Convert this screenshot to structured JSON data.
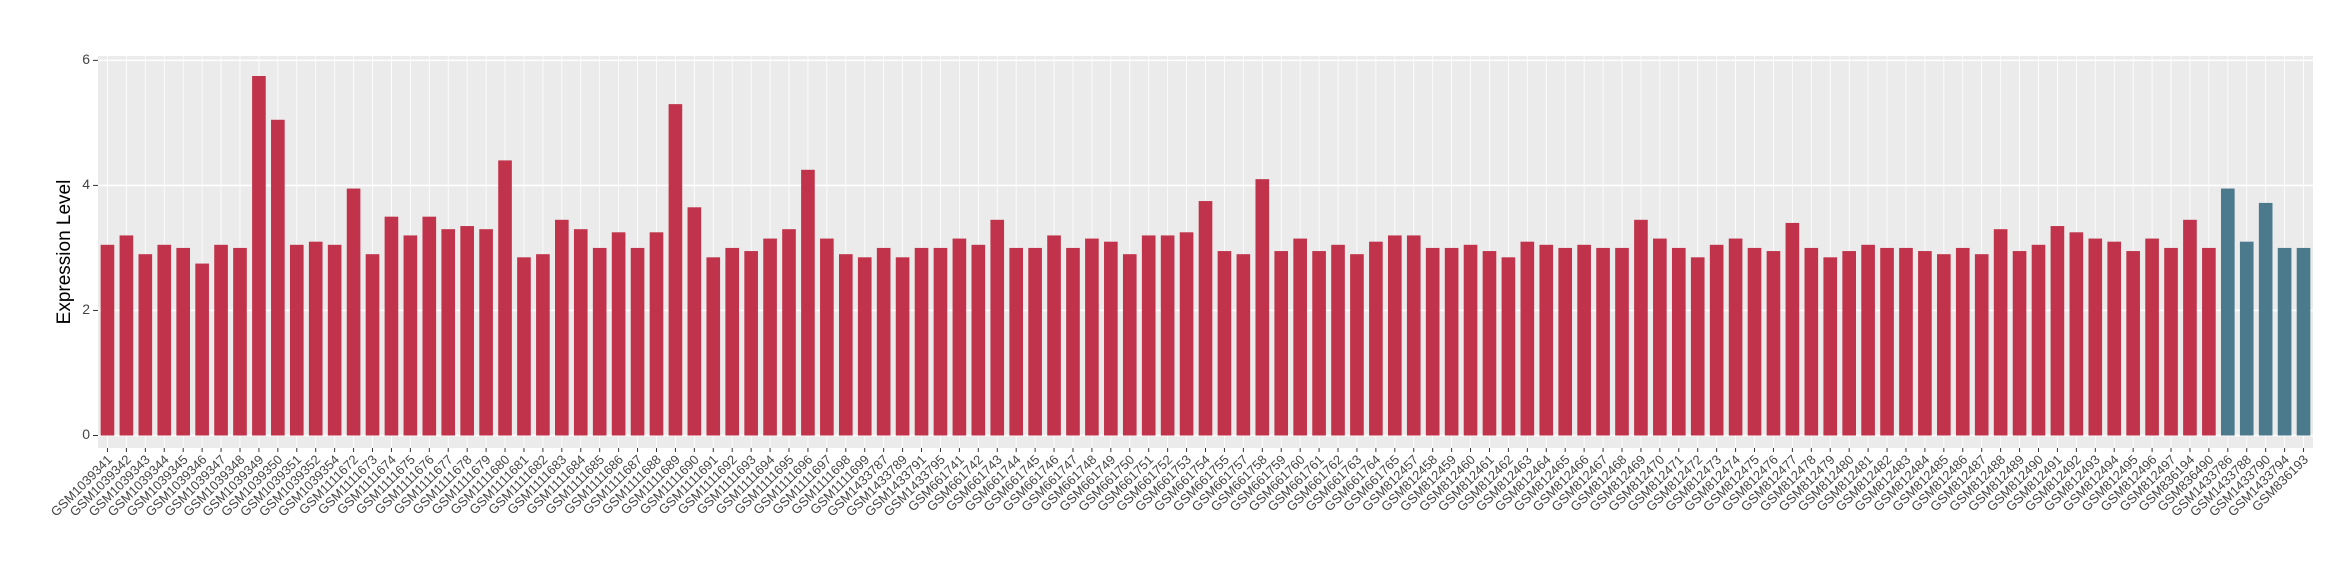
{
  "chart_data": {
    "type": "bar",
    "y_label": "Expression Level",
    "categories": [
      "GSM1039341",
      "GSM1039342",
      "GSM1039343",
      "GSM1039344",
      "GSM1039345",
      "GSM1039346",
      "GSM1039347",
      "GSM1039348",
      "GSM1039349",
      "GSM1039350",
      "GSM1039351",
      "GSM1039352",
      "GSM1039354",
      "GSM1111672",
      "GSM1111673",
      "GSM1111674",
      "GSM1111675",
      "GSM1111676",
      "GSM1111677",
      "GSM1111678",
      "GSM1111679",
      "GSM1111680",
      "GSM1111681",
      "GSM1111682",
      "GSM1111683",
      "GSM1111684",
      "GSM1111685",
      "GSM1111686",
      "GSM1111687",
      "GSM1111688",
      "GSM1111689",
      "GSM1111690",
      "GSM1111691",
      "GSM1111692",
      "GSM1111693",
      "GSM1111694",
      "GSM1111695",
      "GSM1111696",
      "GSM1111697",
      "GSM1111698",
      "GSM1111699",
      "GSM1433787",
      "GSM1433789",
      "GSM1433791",
      "GSM1433795",
      "GSM661741",
      "GSM661742",
      "GSM661743",
      "GSM661744",
      "GSM661745",
      "GSM661746",
      "GSM661747",
      "GSM661748",
      "GSM661749",
      "GSM661750",
      "GSM661751",
      "GSM661752",
      "GSM661753",
      "GSM661754",
      "GSM661755",
      "GSM661757",
      "GSM661758",
      "GSM661759",
      "GSM661760",
      "GSM661761",
      "GSM661762",
      "GSM661763",
      "GSM661764",
      "GSM661765",
      "GSM812457",
      "GSM812458",
      "GSM812459",
      "GSM812460",
      "GSM812461",
      "GSM812462",
      "GSM812463",
      "GSM812464",
      "GSM812465",
      "GSM812466",
      "GSM812467",
      "GSM812468",
      "GSM812469",
      "GSM812470",
      "GSM812471",
      "GSM812472",
      "GSM812473",
      "GSM812474",
      "GSM812475",
      "GSM812476",
      "GSM812477",
      "GSM812478",
      "GSM812479",
      "GSM812480",
      "GSM812481",
      "GSM812482",
      "GSM812483",
      "GSM812484",
      "GSM812485",
      "GSM812486",
      "GSM812487",
      "GSM812488",
      "GSM812489",
      "GSM812490",
      "GSM812491",
      "GSM812492",
      "GSM812493",
      "GSM812494",
      "GSM812495",
      "GSM812496",
      "GSM812497",
      "GSM836194",
      "GSM836490",
      "GSM1433786",
      "GSM1433788",
      "GSM1433790",
      "GSM1433794",
      "GSM836193"
    ],
    "values": [
      3.05,
      3.2,
      2.9,
      3.05,
      3.0,
      2.75,
      3.05,
      3.0,
      5.75,
      5.05,
      3.05,
      3.1,
      3.05,
      3.95,
      2.9,
      3.5,
      3.2,
      3.5,
      3.3,
      3.35,
      3.3,
      4.4,
      2.85,
      2.9,
      3.45,
      3.3,
      3.0,
      3.25,
      3.0,
      3.25,
      5.3,
      3.65,
      2.85,
      3.0,
      2.95,
      3.15,
      3.3,
      4.25,
      3.15,
      2.9,
      2.85,
      3.0,
      2.85,
      3.0,
      3.0,
      3.15,
      3.05,
      3.45,
      3.0,
      3.0,
      3.2,
      3.0,
      3.15,
      3.1,
      2.9,
      3.2,
      3.2,
      3.25,
      3.75,
      2.95,
      2.9,
      4.1,
      2.95,
      3.15,
      2.95,
      3.05,
      2.9,
      3.1,
      3.2,
      3.2,
      3.0,
      3.0,
      3.05,
      2.95,
      2.85,
      3.1,
      3.05,
      3.0,
      3.05,
      3.0,
      3.0,
      3.45,
      3.15,
      3.0,
      2.85,
      3.05,
      3.15,
      3.0,
      2.95,
      3.4,
      3.0,
      2.85,
      2.95,
      3.05,
      3.0,
      3.0,
      2.95,
      2.9,
      3.0,
      2.9,
      3.3,
      2.95,
      3.05,
      3.35,
      3.25,
      3.15,
      3.1,
      2.95,
      3.15,
      3.0,
      3.45,
      3.0,
      3.95,
      3.1,
      3.72,
      3.0,
      3.0
    ],
    "colors": [
      "#c0334a",
      "#c0334a",
      "#c0334a",
      "#c0334a",
      "#c0334a",
      "#c0334a",
      "#c0334a",
      "#c0334a",
      "#c0334a",
      "#c0334a",
      "#c0334a",
      "#c0334a",
      "#c0334a",
      "#c0334a",
      "#c0334a",
      "#c0334a",
      "#c0334a",
      "#c0334a",
      "#c0334a",
      "#c0334a",
      "#c0334a",
      "#c0334a",
      "#c0334a",
      "#c0334a",
      "#c0334a",
      "#c0334a",
      "#c0334a",
      "#c0334a",
      "#c0334a",
      "#c0334a",
      "#c0334a",
      "#c0334a",
      "#c0334a",
      "#c0334a",
      "#c0334a",
      "#c0334a",
      "#c0334a",
      "#c0334a",
      "#c0334a",
      "#c0334a",
      "#c0334a",
      "#c0334a",
      "#c0334a",
      "#c0334a",
      "#c0334a",
      "#c0334a",
      "#c0334a",
      "#c0334a",
      "#c0334a",
      "#c0334a",
      "#c0334a",
      "#c0334a",
      "#c0334a",
      "#c0334a",
      "#c0334a",
      "#c0334a",
      "#c0334a",
      "#c0334a",
      "#c0334a",
      "#c0334a",
      "#c0334a",
      "#c0334a",
      "#c0334a",
      "#c0334a",
      "#c0334a",
      "#c0334a",
      "#c0334a",
      "#c0334a",
      "#c0334a",
      "#c0334a",
      "#c0334a",
      "#c0334a",
      "#c0334a",
      "#c0334a",
      "#c0334a",
      "#c0334a",
      "#c0334a",
      "#c0334a",
      "#c0334a",
      "#c0334a",
      "#c0334a",
      "#c0334a",
      "#c0334a",
      "#c0334a",
      "#c0334a",
      "#c0334a",
      "#c0334a",
      "#c0334a",
      "#c0334a",
      "#c0334a",
      "#c0334a",
      "#c0334a",
      "#c0334a",
      "#c0334a",
      "#c0334a",
      "#c0334a",
      "#c0334a",
      "#c0334a",
      "#c0334a",
      "#c0334a",
      "#c0334a",
      "#c0334a",
      "#c0334a",
      "#c0334a",
      "#c0334a",
      "#c0334a",
      "#c0334a",
      "#c0334a",
      "#c0334a",
      "#c0334a",
      "#c0334a",
      "#c0334a",
      "#4a7a8c",
      "#4a7a8c",
      "#4a7a8c",
      "#4a7a8c",
      "#4a7a8c"
    ],
    "ylim": [
      -0.2,
      6.07
    ],
    "yticks": [
      0,
      2,
      4,
      6
    ],
    "grid": true
  }
}
